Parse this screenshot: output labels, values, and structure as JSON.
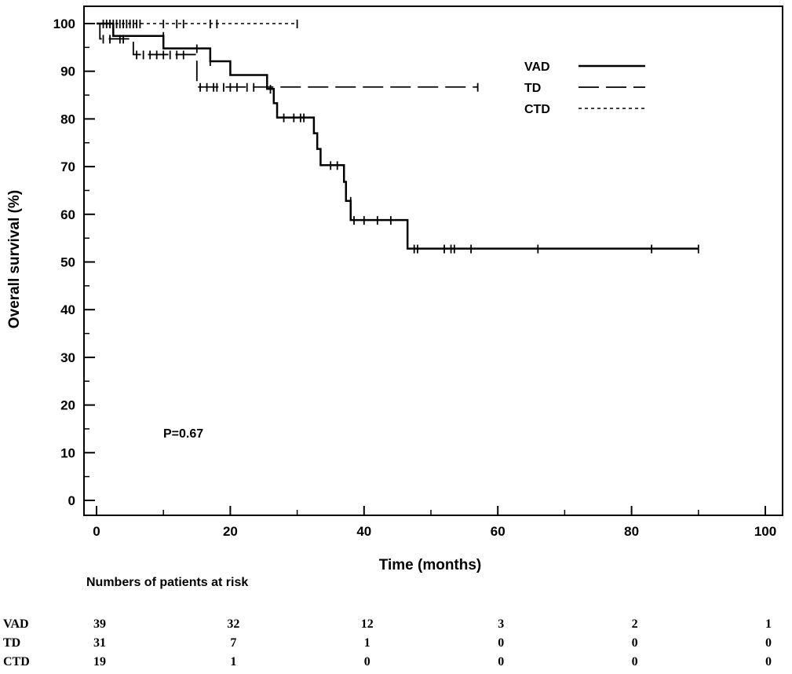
{
  "chart_data": {
    "type": "line",
    "subtype": "kaplan-meier",
    "xlabel": "Time (months)",
    "ylabel": "Overall survival (%)",
    "xlim": [
      0,
      100
    ],
    "ylim": [
      0,
      100
    ],
    "xticks": [
      0,
      20,
      40,
      60,
      80,
      100
    ],
    "yticks": [
      0,
      10,
      20,
      30,
      40,
      50,
      60,
      70,
      80,
      90,
      100
    ],
    "grid": false,
    "legend": "top-right",
    "annotation": "P=0.67",
    "series": [
      {
        "name": "VAD",
        "style": "solid",
        "steps": [
          [
            0,
            100
          ],
          [
            2.5,
            97.4
          ],
          [
            10,
            94.8
          ],
          [
            17,
            92.1
          ],
          [
            20,
            89.2
          ],
          [
            25.5,
            86.3
          ],
          [
            26.5,
            83.3
          ],
          [
            27,
            80.3
          ],
          [
            32.5,
            77
          ],
          [
            33,
            73.7
          ],
          [
            33.5,
            70.3
          ],
          [
            37,
            66.8
          ],
          [
            37.3,
            62.8
          ],
          [
            38,
            58.8
          ],
          [
            46.5,
            52.8
          ],
          [
            90,
            52.8
          ]
        ],
        "censored": [
          [
            10,
            97.4
          ],
          [
            15,
            94.8
          ],
          [
            17,
            92.1
          ],
          [
            26,
            86.3
          ],
          [
            28,
            80.3
          ],
          [
            29.5,
            80.3
          ],
          [
            30.5,
            80.3
          ],
          [
            31,
            80.3
          ],
          [
            35,
            70.3
          ],
          [
            36,
            70.3
          ],
          [
            38,
            62.8
          ],
          [
            38.5,
            58.8
          ],
          [
            40,
            58.8
          ],
          [
            42,
            58.8
          ],
          [
            44,
            58.8
          ],
          [
            47.5,
            52.8
          ],
          [
            48,
            52.8
          ],
          [
            52,
            52.8
          ],
          [
            53,
            52.8
          ],
          [
            53.5,
            52.8
          ],
          [
            56,
            52.8
          ],
          [
            66,
            52.8
          ],
          [
            83,
            52.8
          ],
          [
            90,
            52.8
          ]
        ]
      },
      {
        "name": "TD",
        "style": "long-dash",
        "steps": [
          [
            0,
            100
          ],
          [
            0.5,
            96.8
          ],
          [
            5.5,
            93.5
          ],
          [
            15,
            86.7
          ],
          [
            57,
            86.7
          ]
        ],
        "censored": [
          [
            1,
            96.8
          ],
          [
            2,
            96.8
          ],
          [
            3.5,
            96.8
          ],
          [
            4,
            96.8
          ],
          [
            6,
            93.5
          ],
          [
            7,
            93.5
          ],
          [
            8,
            93.5
          ],
          [
            9,
            93.5
          ],
          [
            10,
            93.5
          ],
          [
            11,
            93.5
          ],
          [
            12,
            93.5
          ],
          [
            13,
            93.5
          ],
          [
            15.5,
            86.7
          ],
          [
            16.5,
            86.7
          ],
          [
            17.5,
            86.7
          ],
          [
            18,
            86.7
          ],
          [
            19,
            86.7
          ],
          [
            20,
            86.7
          ],
          [
            21,
            86.7
          ],
          [
            22.5,
            86.7
          ],
          [
            23.5,
            86.7
          ],
          [
            57,
            86.7
          ]
        ]
      },
      {
        "name": "CTD",
        "style": "dotted",
        "steps": [
          [
            0,
            100
          ],
          [
            30,
            100
          ]
        ],
        "censored": [
          [
            1,
            100
          ],
          [
            1.5,
            100
          ],
          [
            2,
            100
          ],
          [
            2.5,
            100
          ],
          [
            3,
            100
          ],
          [
            3.5,
            100
          ],
          [
            4,
            100
          ],
          [
            4.5,
            100
          ],
          [
            5,
            100
          ],
          [
            5.5,
            100
          ],
          [
            6,
            100
          ],
          [
            6.5,
            100
          ],
          [
            10,
            100
          ],
          [
            12,
            100
          ],
          [
            13,
            100
          ],
          [
            17,
            100
          ],
          [
            18,
            100
          ],
          [
            30,
            100
          ]
        ]
      }
    ]
  },
  "risk_table": {
    "title": "Numbers of patients at risk",
    "columns": [
      0,
      20,
      40,
      60,
      80,
      100
    ],
    "rows": [
      {
        "label": "VAD",
        "values": [
          "39",
          "32",
          "12",
          "3",
          "2",
          "1"
        ]
      },
      {
        "label": "TD",
        "values": [
          "31",
          "7",
          "1",
          "0",
          "0",
          "0"
        ]
      },
      {
        "label": "CTD",
        "values": [
          "19",
          "1",
          "0",
          "0",
          "0",
          "0"
        ]
      }
    ]
  }
}
